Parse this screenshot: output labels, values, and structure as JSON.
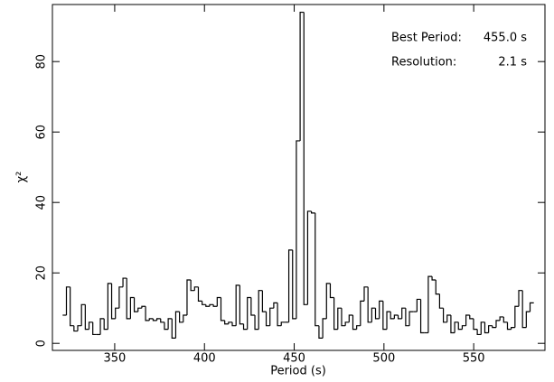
{
  "chart_data": {
    "type": "histogram",
    "xlabel": "Period (s)",
    "ylabel": "χ²",
    "annotations": [
      {
        "label": "Best Period:",
        "value": "455.0 s"
      },
      {
        "label": "Resolution:",
        "value": "2.1 s"
      }
    ],
    "bins": [
      321.0,
      323.1,
      325.2,
      327.3,
      329.4,
      331.5,
      333.6,
      335.7,
      337.8,
      339.9,
      342.0,
      344.1,
      346.2,
      348.3,
      350.4,
      352.5,
      354.6,
      356.7,
      358.8,
      360.9,
      363.0,
      365.1,
      367.2,
      369.3,
      371.4,
      373.5,
      375.6,
      377.7,
      379.8,
      381.9,
      384.0,
      386.1,
      388.2,
      390.3,
      392.4,
      394.5,
      396.6,
      398.7,
      400.8,
      402.9,
      405.0,
      407.1,
      409.2,
      411.3,
      413.4,
      415.5,
      417.6,
      419.7,
      421.8,
      423.9,
      426.0,
      428.1,
      430.2,
      432.3,
      434.4,
      436.5,
      438.6,
      440.7,
      442.8,
      444.9,
      447.0,
      449.1,
      451.2,
      453.3,
      455.4,
      457.5,
      459.6,
      461.7,
      463.8,
      465.9,
      468.0,
      470.1,
      472.2,
      474.3,
      476.4,
      478.5,
      480.6,
      482.7,
      484.8,
      486.9,
      489.0,
      491.1,
      493.2,
      495.3,
      497.4,
      499.5,
      501.6,
      503.7,
      505.8,
      507.9,
      510.0,
      512.1,
      514.2,
      516.3,
      518.4,
      520.5,
      522.6,
      524.7,
      526.8,
      528.9,
      531.0,
      533.1,
      535.2,
      537.3,
      539.4,
      541.5,
      543.6,
      545.7,
      547.8,
      549.9,
      552.0,
      554.1,
      556.2,
      558.3,
      560.4,
      562.5,
      564.6,
      566.7,
      568.8,
      570.9,
      573.0,
      575.1,
      577.2,
      579.3,
      581.4,
      583.5
    ],
    "values": [
      8,
      16,
      5,
      3.5,
      5,
      11,
      4,
      6,
      2.5,
      2.5,
      7,
      4,
      17,
      7,
      10,
      16,
      18.5,
      7,
      13,
      9,
      10,
      10.5,
      6.5,
      7,
      6.5,
      7,
      6,
      4,
      7,
      1.5,
      9,
      6,
      8,
      18,
      15,
      16,
      12,
      11,
      10.5,
      11,
      10.5,
      13,
      6.5,
      5.5,
      6,
      5,
      16.5,
      5.5,
      4,
      13,
      8,
      4,
      15,
      9,
      5,
      10,
      11.5,
      5,
      6,
      6,
      26.5,
      7,
      57.5,
      94,
      11,
      37.5,
      37,
      5,
      1.5,
      7,
      17,
      13,
      4,
      10,
      5,
      6,
      8,
      4,
      5,
      12,
      16,
      6,
      10,
      7,
      12,
      4,
      9,
      7,
      8,
      7,
      10,
      5,
      9,
      9,
      12.5,
      3,
      3,
      19,
      18,
      14,
      10,
      6,
      8,
      3,
      6,
      4,
      5,
      8,
      7,
      4,
      2.5,
      6,
      3,
      5,
      4.5,
      6.5,
      7.5,
      6,
      4,
      4.5,
      10.5,
      15,
      4.5,
      9,
      11.5
    ],
    "color": "#000000",
    "xlim": [
      315.3,
      589.7
    ],
    "xticks": [
      350,
      400,
      450,
      500,
      550
    ],
    "ylim": [
      -2,
      96.2
    ],
    "yticks": [
      0,
      20,
      40,
      60,
      80
    ]
  }
}
